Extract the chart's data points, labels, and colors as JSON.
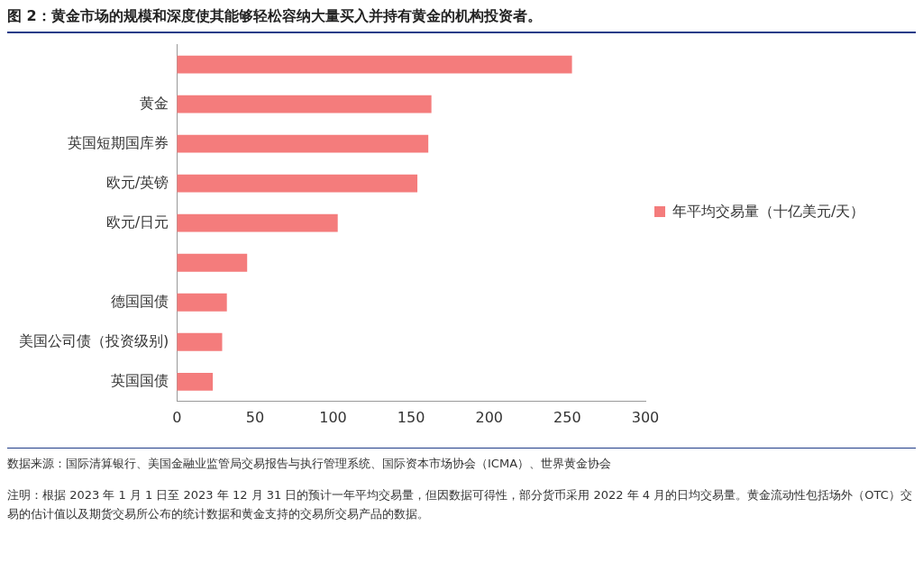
{
  "chart_data": {
    "type": "bar",
    "orientation": "horizontal",
    "title": "图 2：黄金市场的规模和深度使其能够轻松容纳大量买入并持有黄金的机构投资者。",
    "categories": [
      null,
      "黄金",
      "英国短期国库券",
      "欧元/英镑",
      "欧元/日元",
      null,
      "德国国债",
      "美国公司债（投资级别)",
      "英国国债"
    ],
    "series": [
      {
        "name": "年平均交易量（十亿美元/天）",
        "color": "#f47c7c",
        "values": [
          253,
          163,
          161,
          154,
          103,
          45,
          32,
          29,
          23
        ]
      }
    ],
    "xlim": [
      0,
      300
    ],
    "xticks": [
      0,
      50,
      100,
      150,
      200,
      250,
      300
    ],
    "grid": false,
    "legend": "right",
    "annotations": [
      "数据来源：国际清算银行、美国金融业监管局交易报告与执行管理系统、国际资本市场协会（ICMA）、世界黄金协会",
      "注明：根据 2023 年 1 月 1 日至 2023 年 12 月 31 日的预计一年平均交易量，但因数据可得性，部分货币采用 2022 年 4 月的日均交易量。黄金流动性包括场外（OTC）交易的估计值以及期货交易所公布的统计数据和黄金支持的交易所交易产品的数据。"
    ]
  }
}
